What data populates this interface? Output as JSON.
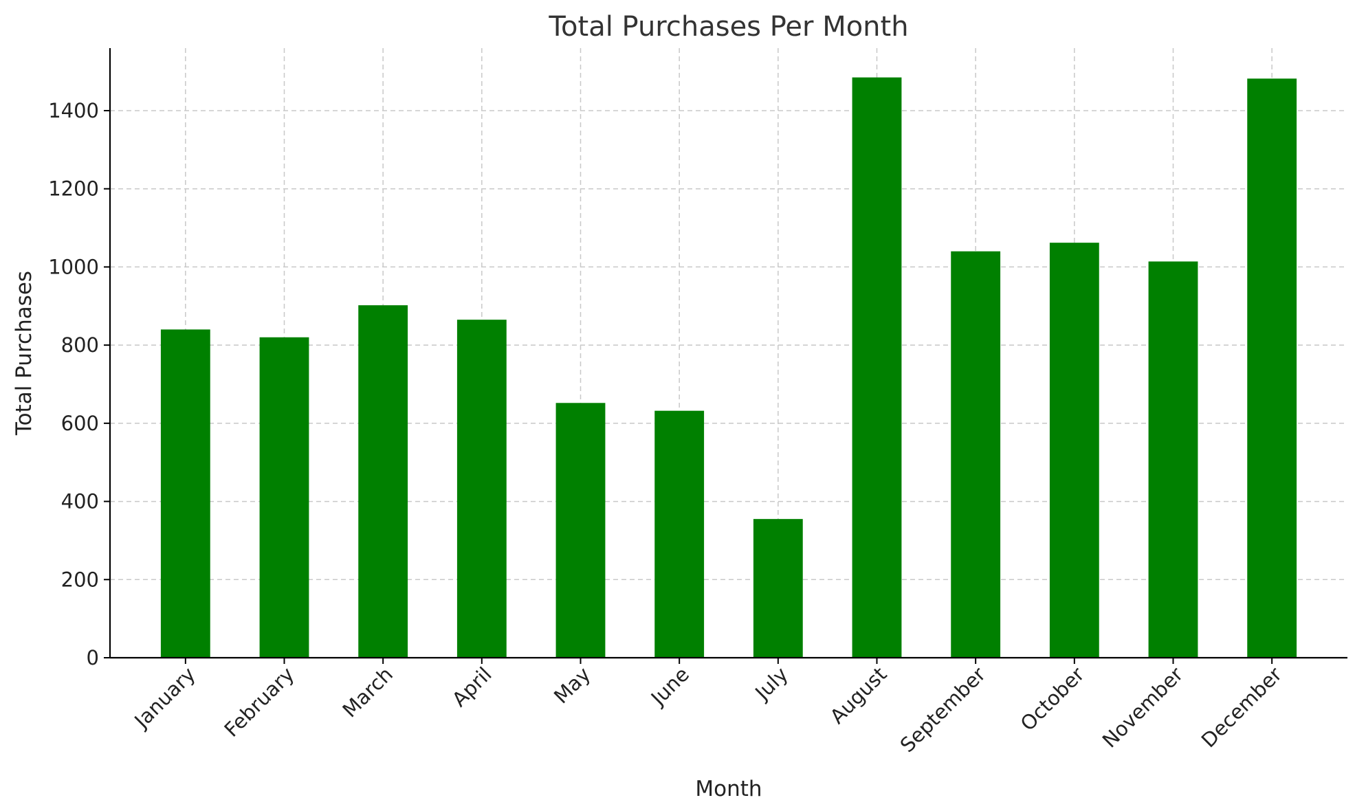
{
  "chart_data": {
    "type": "bar",
    "title": "Total Purchases Per Month",
    "xlabel": "Month",
    "ylabel": "Total Purchases",
    "categories": [
      "January",
      "February",
      "March",
      "April",
      "May",
      "June",
      "July",
      "August",
      "September",
      "October",
      "November",
      "December"
    ],
    "values": [
      840,
      820,
      902,
      865,
      652,
      632,
      355,
      1485,
      1040,
      1062,
      1014,
      1482
    ],
    "ylim": [
      0,
      1560
    ],
    "yticks": [
      0,
      200,
      400,
      600,
      800,
      1000,
      1200,
      1400
    ],
    "grid": true,
    "bar_color": "#008000",
    "grid_color": "#c8c8c8",
    "axis_color": "#000000",
    "title_color": "#333333"
  }
}
